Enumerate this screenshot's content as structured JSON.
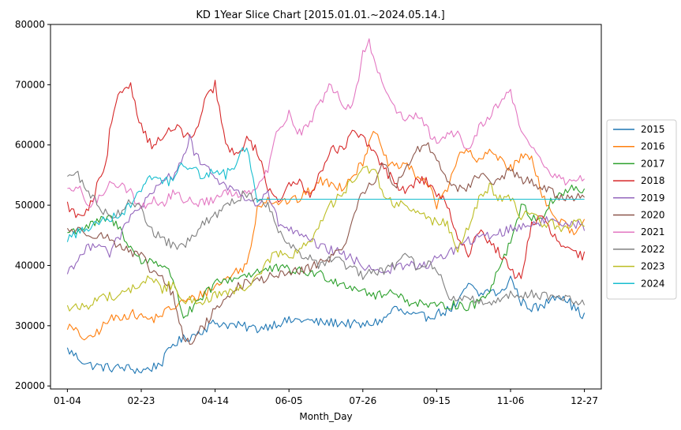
{
  "chart_data": {
    "type": "line",
    "title": "KD 1Year Slice Chart [2015.01.01.~2024.05.14.]",
    "xlabel": "Month_Day",
    "ylabel": "",
    "x_ticks": [
      "01-04",
      "02-23",
      "04-14",
      "06-05",
      "07-26",
      "09-15",
      "11-06",
      "12-27"
    ],
    "x_tick_index": [
      0,
      35,
      70,
      105,
      140,
      175,
      210,
      245
    ],
    "x_range": [
      -8,
      253
    ],
    "y_ticks": [
      20000,
      30000,
      40000,
      50000,
      60000,
      70000,
      80000
    ],
    "ylim": [
      19500,
      80000
    ],
    "grid": false,
    "legend_position": "right",
    "series": [
      {
        "name": "2015",
        "color": "#1f77b4",
        "x": [
          0,
          10,
          20,
          28,
          35,
          40,
          45,
          50,
          60,
          70,
          80,
          90,
          100,
          110,
          120,
          130,
          140,
          150,
          155,
          160,
          165,
          170,
          175,
          180,
          185,
          190,
          195,
          200,
          205,
          210,
          215,
          220,
          225,
          230,
          235,
          240,
          245
        ],
        "values": [
          26000,
          23500,
          23000,
          23000,
          22500,
          23000,
          24000,
          27000,
          28500,
          30500,
          30000,
          29500,
          30500,
          31000,
          30500,
          30500,
          30000,
          31000,
          33000,
          32000,
          31500,
          31500,
          32000,
          32500,
          33500,
          37000,
          35000,
          36000,
          35000,
          38000,
          34000,
          33000,
          33000,
          35000,
          35000,
          33000,
          31500
        ]
      },
      {
        "name": "2016",
        "color": "#ff7f0e",
        "x": [
          0,
          10,
          20,
          30,
          40,
          50,
          55,
          60,
          70,
          80,
          85,
          88,
          90,
          95,
          100,
          110,
          120,
          130,
          140,
          145,
          150,
          155,
          160,
          165,
          170,
          175,
          180,
          185,
          190,
          195,
          200,
          205,
          210,
          215,
          220,
          225,
          230,
          235,
          240,
          245
        ],
        "values": [
          30000,
          27500,
          31000,
          32000,
          31000,
          33000,
          34000,
          34500,
          36500,
          39000,
          40000,
          45000,
          50000,
          51000,
          50500,
          51000,
          54000,
          53000,
          57000,
          63000,
          58000,
          56000,
          57000,
          55000,
          54000,
          50000,
          53000,
          58000,
          59000,
          57000,
          59000,
          58000,
          56000,
          58000,
          58000,
          52000,
          48000,
          47000,
          45000,
          47000
        ]
      },
      {
        "name": "2017",
        "color": "#2ca02c",
        "x": [
          0,
          10,
          20,
          25,
          30,
          35,
          40,
          45,
          50,
          55,
          60,
          65,
          70,
          75,
          80,
          90,
          100,
          110,
          120,
          130,
          140,
          145,
          150,
          155,
          160,
          165,
          170,
          175,
          180,
          185,
          190,
          195,
          200,
          205,
          210,
          215,
          220,
          225,
          230,
          235,
          240,
          245
        ],
        "values": [
          45500,
          46500,
          48000,
          46000,
          43000,
          40500,
          41000,
          40000,
          38000,
          31500,
          33000,
          35000,
          37000,
          37500,
          38000,
          39000,
          39500,
          39000,
          38500,
          37000,
          36000,
          35000,
          35000,
          36000,
          34000,
          34000,
          33500,
          33000,
          33500,
          33500,
          33000,
          34000,
          36000,
          40000,
          44000,
          50000,
          48000,
          48000,
          51000,
          52000,
          53000,
          52000
        ]
      },
      {
        "name": "2018",
        "color": "#d62728",
        "x": [
          0,
          5,
          10,
          15,
          18,
          20,
          25,
          30,
          35,
          40,
          45,
          50,
          55,
          60,
          65,
          70,
          72,
          75,
          80,
          85,
          90,
          95,
          100,
          105,
          110,
          115,
          120,
          125,
          130,
          135,
          140,
          145,
          150,
          155,
          160,
          165,
          170,
          175,
          180,
          185,
          190,
          195,
          200,
          205,
          210,
          215,
          220,
          225,
          230,
          235,
          240,
          245
        ],
        "values": [
          50000,
          48000,
          49000,
          54000,
          56000,
          62000,
          69000,
          70000,
          63000,
          60000,
          61000,
          63000,
          62000,
          61000,
          67000,
          70000,
          66000,
          60000,
          58000,
          61000,
          59000,
          53000,
          51000,
          53000,
          54000,
          52000,
          55000,
          60000,
          59000,
          62000,
          61000,
          59000,
          56000,
          54000,
          52000,
          54000,
          54000,
          52000,
          50000,
          44000,
          42000,
          46000,
          44000,
          42000,
          39000,
          38000,
          47000,
          48000,
          45000,
          43000,
          42000,
          41500
        ]
      },
      {
        "name": "2019",
        "color": "#9467bd",
        "x": [
          0,
          5,
          10,
          15,
          20,
          25,
          30,
          35,
          40,
          45,
          50,
          55,
          58,
          60,
          65,
          70,
          75,
          80,
          85,
          90,
          95,
          100,
          105,
          110,
          115,
          120,
          130,
          140,
          150,
          160,
          170,
          180,
          190,
          200,
          210,
          220,
          230,
          240,
          245
        ],
        "values": [
          39000,
          41000,
          43000,
          44000,
          42000,
          45000,
          48000,
          50000,
          51500,
          54000,
          55000,
          58000,
          61000,
          59000,
          56000,
          55000,
          53000,
          52500,
          51000,
          50000,
          52000,
          47000,
          46000,
          45000,
          44000,
          43000,
          42000,
          40000,
          39000,
          40000,
          40000,
          42000,
          44000,
          45000,
          46000,
          47000,
          47500,
          47000,
          46500
        ]
      },
      {
        "name": "2020",
        "color": "#8c564b",
        "x": [
          0,
          10,
          20,
          30,
          35,
          40,
          45,
          50,
          55,
          58,
          60,
          65,
          70,
          75,
          80,
          90,
          100,
          110,
          120,
          125,
          130,
          135,
          140,
          145,
          150,
          155,
          160,
          165,
          170,
          175,
          180,
          185,
          190,
          195,
          200,
          205,
          210,
          215,
          220,
          225,
          230,
          235,
          240,
          245
        ],
        "values": [
          46000,
          45500,
          44500,
          42000,
          41500,
          39000,
          38000,
          35000,
          28000,
          27000,
          28000,
          30000,
          33000,
          34000,
          36500,
          37500,
          38500,
          39000,
          40500,
          41500,
          42000,
          48000,
          52000,
          54000,
          57000,
          53000,
          56000,
          59000,
          60000,
          58000,
          54000,
          53000,
          53000,
          55000,
          54000,
          54000,
          56000,
          54000,
          54000,
          53000,
          52000,
          51000,
          51500,
          52000
        ]
      },
      {
        "name": "2021",
        "color": "#e377c2",
        "x": [
          0,
          5,
          10,
          15,
          20,
          25,
          30,
          35,
          40,
          45,
          50,
          55,
          60,
          65,
          70,
          75,
          80,
          85,
          90,
          95,
          100,
          105,
          110,
          115,
          120,
          125,
          130,
          135,
          140,
          143,
          145,
          150,
          155,
          160,
          165,
          170,
          175,
          180,
          185,
          190,
          195,
          200,
          205,
          210,
          215,
          220,
          225,
          230,
          235,
          240,
          245
        ],
        "values": [
          52000,
          53000,
          50000,
          51000,
          54000,
          53500,
          52000,
          49500,
          51000,
          50000,
          52000,
          51000,
          50500,
          50500,
          51000,
          52000,
          52000,
          52000,
          53500,
          56000,
          63000,
          65000,
          62000,
          64000,
          67000,
          70000,
          67000,
          66000,
          75000,
          77000,
          74000,
          70000,
          66000,
          64000,
          65000,
          63000,
          60000,
          62000,
          62000,
          59000,
          63000,
          65000,
          67000,
          69000,
          62000,
          60000,
          57000,
          55000,
          54000,
          54000,
          55000
        ]
      },
      {
        "name": "2022",
        "color": "#7f7f7f",
        "x": [
          0,
          5,
          10,
          15,
          20,
          25,
          30,
          35,
          40,
          45,
          50,
          55,
          60,
          65,
          70,
          75,
          80,
          85,
          90,
          95,
          100,
          105,
          110,
          115,
          120,
          125,
          130,
          135,
          140,
          145,
          150,
          155,
          160,
          165,
          170,
          175,
          180,
          185,
          190,
          195,
          200,
          205,
          210,
          215,
          220,
          225,
          230,
          235,
          240,
          245
        ],
        "values": [
          55000,
          55000,
          52000,
          50000,
          48000,
          49000,
          51000,
          49000,
          46000,
          44000,
          43500,
          43000,
          45000,
          47000,
          48500,
          49500,
          51000,
          52000,
          51000,
          50000,
          46000,
          44000,
          42000,
          41000,
          40000,
          41000,
          40500,
          39500,
          38000,
          39000,
          39000,
          40000,
          42000,
          40000,
          40500,
          39500,
          35000,
          34500,
          34500,
          34000,
          34000,
          34500,
          35000,
          35000,
          35500,
          35000,
          35000,
          34500,
          34000,
          34000
        ]
      },
      {
        "name": "2023",
        "color": "#bcbd22",
        "x": [
          0,
          5,
          10,
          15,
          20,
          25,
          30,
          35,
          40,
          45,
          50,
          55,
          60,
          65,
          70,
          75,
          80,
          85,
          90,
          95,
          100,
          105,
          110,
          115,
          120,
          125,
          130,
          135,
          140,
          145,
          150,
          155,
          160,
          165,
          170,
          175,
          180,
          185,
          190,
          195,
          200,
          205,
          210,
          215,
          220,
          225,
          230,
          235,
          240,
          245
        ],
        "values": [
          33000,
          33000,
          33500,
          34500,
          35000,
          35000,
          36000,
          37000,
          38000,
          36000,
          37000,
          34000,
          34500,
          34000,
          35000,
          35000,
          36000,
          36000,
          38000,
          41000,
          42000,
          41000,
          43000,
          44000,
          47000,
          50000,
          52000,
          54000,
          56000,
          56000,
          52000,
          50000,
          50000,
          49000,
          48000,
          47000,
          47000,
          43000,
          46000,
          51000,
          53000,
          51000,
          51000,
          48000,
          49000,
          47000,
          47000,
          46000,
          47000,
          47000
        ]
      },
      {
        "name": "2024",
        "color": "#17becf",
        "x": [
          0,
          5,
          10,
          15,
          20,
          25,
          30,
          35,
          40,
          45,
          50,
          55,
          60,
          65,
          70,
          75,
          80,
          85,
          90,
          245
        ],
        "values": [
          44500,
          45500,
          46000,
          47500,
          48000,
          48500,
          50000,
          53000,
          55000,
          54000,
          54000,
          57000,
          56000,
          54500,
          56000,
          55000,
          57000,
          60000,
          51000,
          51000
        ]
      }
    ]
  }
}
